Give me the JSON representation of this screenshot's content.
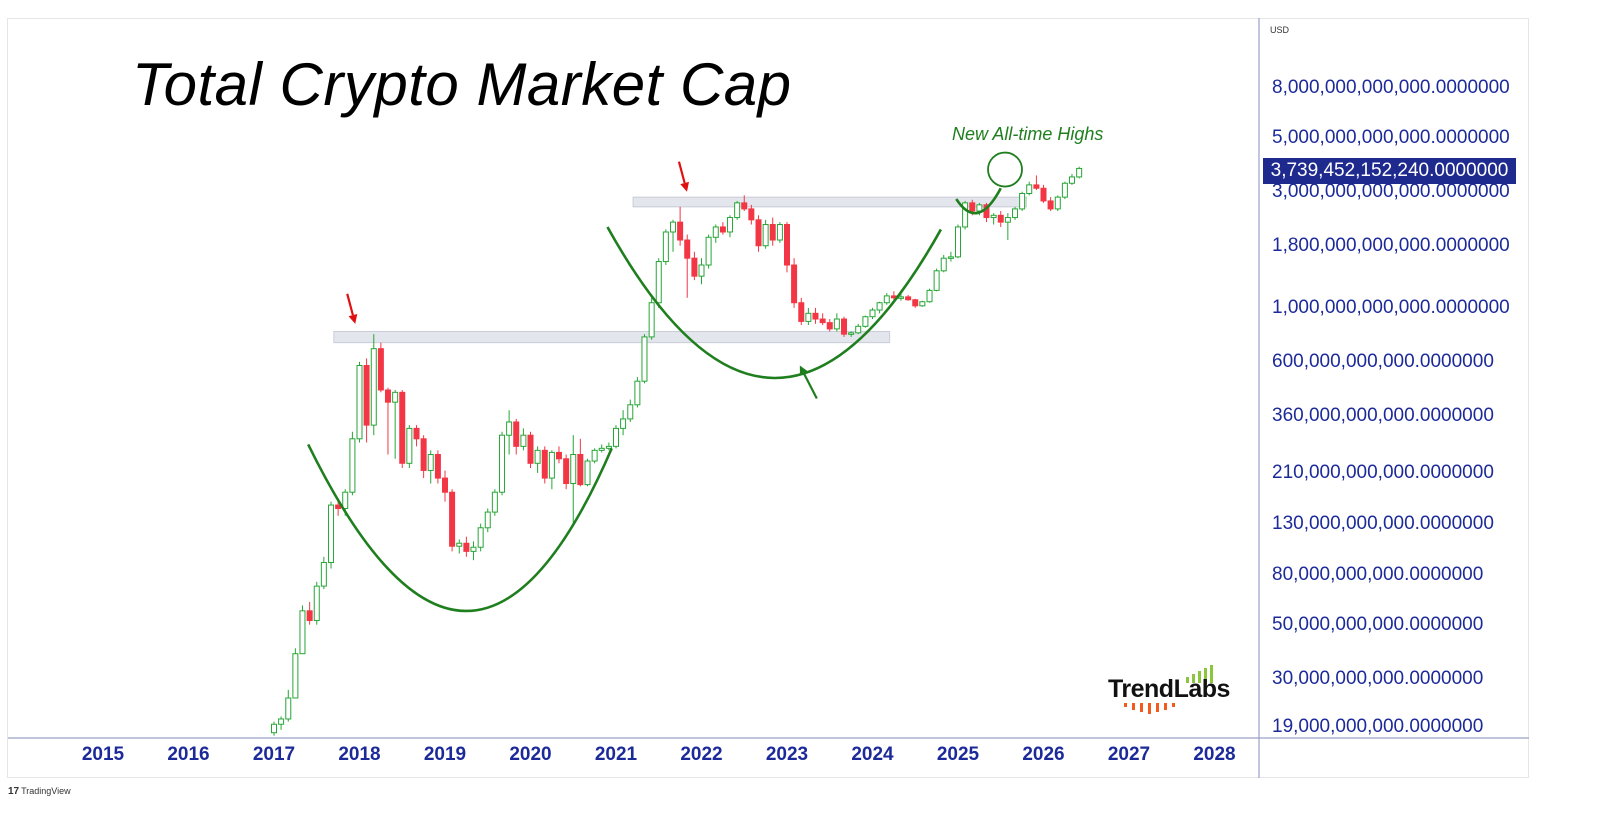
{
  "chart_data": {
    "type": "candlestick",
    "title": "Total Crypto Market Cap",
    "currency": "USD",
    "y_scale": "log",
    "ylim": [
      17000000000,
      12500000000000
    ],
    "xlim": [
      2014.5,
      2028.6
    ],
    "x_ticks": [
      "2015",
      "2016",
      "2017",
      "2018",
      "2019",
      "2020",
      "2021",
      "2022",
      "2023",
      "2024",
      "2025",
      "2026",
      "2027",
      "2028"
    ],
    "y_ticks": [
      {
        "value": 8000000000000,
        "label": "8,000,000,000,000.0000000"
      },
      {
        "value": 5000000000000,
        "label": "5,000,000,000,000.0000000"
      },
      {
        "value": 3000000000000,
        "label": "3,000,000,000,000.0000000"
      },
      {
        "value": 1800000000000,
        "label": "1,800,000,000,000.0000000"
      },
      {
        "value": 1000000000000,
        "label": "1,000,000,000,000.0000000"
      },
      {
        "value": 600000000000,
        "label": "600,000,000,000.0000000"
      },
      {
        "value": 360000000000,
        "label": "360,000,000,000.0000000"
      },
      {
        "value": 210000000000,
        "label": "210,000,000,000.0000000"
      },
      {
        "value": 130000000000,
        "label": "130,000,000,000.0000000"
      },
      {
        "value": 80000000000,
        "label": "80,000,000,000.0000000"
      },
      {
        "value": 50000000000,
        "label": "50,000,000,000.0000000"
      },
      {
        "value": 30000000000,
        "label": "30,000,000,000.0000000"
      },
      {
        "value": 19000000000,
        "label": "19,000,000,000.0000000"
      }
    ],
    "last_price": {
      "value": 3739452152240,
      "label": "3,739,452,152,240.0000000"
    },
    "grid": false,
    "annotations": {
      "ath_text": "New All-time Highs",
      "resistance_zones": [
        {
          "from": 2017.7,
          "to": 2024.2,
          "low": 720000000000,
          "high": 800000000000
        },
        {
          "from": 2021.2,
          "to": 2025.8,
          "low": 2600000000000,
          "high": 2850000000000
        }
      ],
      "cup_curves": [
        {
          "start": [
            2017.4,
            275000000000
          ],
          "control": [
            2019.3,
            12000000000
          ],
          "end": [
            2020.95,
            265000000000
          ]
        },
        {
          "start": [
            2020.9,
            2150000000000
          ],
          "control": [
            2022.85,
            125000000000
          ],
          "end": [
            2024.8,
            2100000000000
          ]
        },
        {
          "start": [
            2024.98,
            2800000000000
          ],
          "control": [
            2025.23,
            2050000000000
          ],
          "end": [
            2025.5,
            3100000000000
          ]
        }
      ],
      "arrows": [
        {
          "color": "red",
          "at": [
            2017.95,
            860000000000
          ]
        },
        {
          "color": "red",
          "at": [
            2021.83,
            3000000000000
          ]
        },
        {
          "color": "green",
          "at": [
            2023.15,
            580000000000
          ]
        }
      ],
      "ath_circle": {
        "at": [
          2025.55,
          3700000000000
        ]
      }
    },
    "candles": [
      {
        "t": 2017.0,
        "o": 18,
        "h": 20,
        "l": 17.5,
        "c": 19.5
      },
      {
        "t": 2017.083,
        "o": 19.5,
        "h": 21,
        "l": 18.5,
        "c": 20.5
      },
      {
        "t": 2017.167,
        "o": 20.5,
        "h": 27,
        "l": 20,
        "c": 25
      },
      {
        "t": 2017.25,
        "o": 25,
        "h": 40,
        "l": 25,
        "c": 38
      },
      {
        "t": 2017.333,
        "o": 38,
        "h": 60,
        "l": 38,
        "c": 57
      },
      {
        "t": 2017.417,
        "o": 57,
        "h": 62,
        "l": 50,
        "c": 52
      },
      {
        "t": 2017.5,
        "o": 52,
        "h": 75,
        "l": 50,
        "c": 72
      },
      {
        "t": 2017.583,
        "o": 72,
        "h": 95,
        "l": 70,
        "c": 90
      },
      {
        "t": 2017.667,
        "o": 90,
        "h": 160,
        "l": 85,
        "c": 155
      },
      {
        "t": 2017.75,
        "o": 155,
        "h": 165,
        "l": 140,
        "c": 150
      },
      {
        "t": 2017.833,
        "o": 150,
        "h": 180,
        "l": 140,
        "c": 175
      },
      {
        "t": 2017.917,
        "o": 175,
        "h": 310,
        "l": 170,
        "c": 290
      },
      {
        "t": 2018.0,
        "o": 290,
        "h": 600,
        "l": 280,
        "c": 580
      },
      {
        "t": 2018.083,
        "o": 580,
        "h": 620,
        "l": 280,
        "c": 330
      },
      {
        "t": 2018.167,
        "o": 330,
        "h": 780,
        "l": 300,
        "c": 680
      },
      {
        "t": 2018.25,
        "o": 680,
        "h": 720,
        "l": 450,
        "c": 460
      },
      {
        "t": 2018.333,
        "o": 460,
        "h": 470,
        "l": 250,
        "c": 410
      },
      {
        "t": 2018.417,
        "o": 410,
        "h": 460,
        "l": 240,
        "c": 450
      },
      {
        "t": 2018.5,
        "o": 450,
        "h": 460,
        "l": 220,
        "c": 230
      },
      {
        "t": 2018.583,
        "o": 230,
        "h": 330,
        "l": 220,
        "c": 320
      },
      {
        "t": 2018.667,
        "o": 320,
        "h": 330,
        "l": 270,
        "c": 290
      },
      {
        "t": 2018.75,
        "o": 290,
        "h": 300,
        "l": 200,
        "c": 215
      },
      {
        "t": 2018.833,
        "o": 215,
        "h": 260,
        "l": 190,
        "c": 250
      },
      {
        "t": 2018.917,
        "o": 250,
        "h": 260,
        "l": 190,
        "c": 200
      },
      {
        "t": 2019.0,
        "o": 200,
        "h": 215,
        "l": 160,
        "c": 175
      },
      {
        "t": 2019.083,
        "o": 175,
        "h": 180,
        "l": 100,
        "c": 105
      },
      {
        "t": 2019.167,
        "o": 105,
        "h": 112,
        "l": 98,
        "c": 108
      },
      {
        "t": 2019.25,
        "o": 108,
        "h": 115,
        "l": 95,
        "c": 100
      },
      {
        "t": 2019.333,
        "o": 100,
        "h": 110,
        "l": 92,
        "c": 104
      },
      {
        "t": 2019.417,
        "o": 104,
        "h": 130,
        "l": 100,
        "c": 125
      },
      {
        "t": 2019.5,
        "o": 125,
        "h": 150,
        "l": 120,
        "c": 145
      },
      {
        "t": 2019.583,
        "o": 145,
        "h": 180,
        "l": 140,
        "c": 175
      },
      {
        "t": 2019.667,
        "o": 175,
        "h": 310,
        "l": 170,
        "c": 300
      },
      {
        "t": 2019.75,
        "o": 300,
        "h": 380,
        "l": 250,
        "c": 340
      },
      {
        "t": 2019.833,
        "o": 340,
        "h": 350,
        "l": 250,
        "c": 270
      },
      {
        "t": 2019.917,
        "o": 270,
        "h": 320,
        "l": 260,
        "c": 300
      },
      {
        "t": 2020.0,
        "o": 300,
        "h": 310,
        "l": 220,
        "c": 230
      },
      {
        "t": 2020.083,
        "o": 230,
        "h": 270,
        "l": 210,
        "c": 260
      },
      {
        "t": 2020.167,
        "o": 260,
        "h": 270,
        "l": 190,
        "c": 200
      },
      {
        "t": 2020.25,
        "o": 200,
        "h": 260,
        "l": 180,
        "c": 255
      },
      {
        "t": 2020.333,
        "o": 255,
        "h": 270,
        "l": 230,
        "c": 240
      },
      {
        "t": 2020.417,
        "o": 240,
        "h": 250,
        "l": 180,
        "c": 190
      },
      {
        "t": 2020.5,
        "o": 190,
        "h": 300,
        "l": 130,
        "c": 250
      },
      {
        "t": 2020.583,
        "o": 250,
        "h": 290,
        "l": 185,
        "c": 188
      },
      {
        "t": 2020.667,
        "o": 188,
        "h": 240,
        "l": 185,
        "c": 235
      },
      {
        "t": 2020.75,
        "o": 235,
        "h": 265,
        "l": 230,
        "c": 260
      },
      {
        "t": 2020.833,
        "o": 260,
        "h": 275,
        "l": 255,
        "c": 265
      },
      {
        "t": 2020.917,
        "o": 265,
        "h": 280,
        "l": 260,
        "c": 270
      },
      {
        "t": 2021.0,
        "o": 270,
        "h": 330,
        "l": 265,
        "c": 320
      },
      {
        "t": 2021.083,
        "o": 320,
        "h": 380,
        "l": 300,
        "c": 350
      },
      {
        "t": 2021.167,
        "o": 350,
        "h": 420,
        "l": 340,
        "c": 400
      },
      {
        "t": 2021.25,
        "o": 400,
        "h": 520,
        "l": 390,
        "c": 500
      },
      {
        "t": 2021.333,
        "o": 500,
        "h": 780,
        "l": 490,
        "c": 760
      },
      {
        "t": 2021.417,
        "o": 760,
        "h": 1100,
        "l": 740,
        "c": 1050
      },
      {
        "t": 2021.5,
        "o": 1050,
        "h": 1600,
        "l": 1000,
        "c": 1550
      },
      {
        "t": 2021.583,
        "o": 1550,
        "h": 2100,
        "l": 1500,
        "c": 2050
      },
      {
        "t": 2021.667,
        "o": 2050,
        "h": 2300,
        "l": 1700,
        "c": 2250
      },
      {
        "t": 2021.75,
        "o": 2250,
        "h": 2600,
        "l": 1800,
        "c": 1900
      },
      {
        "t": 2021.833,
        "o": 1900,
        "h": 2000,
        "l": 1100,
        "c": 1600
      },
      {
        "t": 2021.917,
        "o": 1600,
        "h": 1700,
        "l": 1300,
        "c": 1350
      },
      {
        "t": 2022.0,
        "o": 1350,
        "h": 1600,
        "l": 1250,
        "c": 1500
      },
      {
        "t": 2022.083,
        "o": 1500,
        "h": 2000,
        "l": 1450,
        "c": 1950
      },
      {
        "t": 2022.167,
        "o": 1950,
        "h": 2200,
        "l": 1850,
        "c": 2150
      },
      {
        "t": 2022.25,
        "o": 2150,
        "h": 2250,
        "l": 2000,
        "c": 2050
      },
      {
        "t": 2022.333,
        "o": 2050,
        "h": 2400,
        "l": 1950,
        "c": 2350
      },
      {
        "t": 2022.417,
        "o": 2350,
        "h": 2750,
        "l": 2300,
        "c": 2700
      },
      {
        "t": 2022.5,
        "o": 2700,
        "h": 2900,
        "l": 2500,
        "c": 2550
      },
      {
        "t": 2022.583,
        "o": 2550,
        "h": 2650,
        "l": 2200,
        "c": 2300
      },
      {
        "t": 2022.667,
        "o": 2300,
        "h": 2400,
        "l": 1700,
        "c": 1800
      },
      {
        "t": 2022.75,
        "o": 1800,
        "h": 2300,
        "l": 1750,
        "c": 2200
      },
      {
        "t": 2022.833,
        "o": 2200,
        "h": 2350,
        "l": 1800,
        "c": 1900
      },
      {
        "t": 2022.917,
        "o": 1900,
        "h": 2250,
        "l": 1850,
        "c": 2200
      },
      {
        "t": 2023.0,
        "o": 2200,
        "h": 2250,
        "l": 1400,
        "c": 1500
      },
      {
        "t": 2023.083,
        "o": 1500,
        "h": 1600,
        "l": 1000,
        "c": 1050
      },
      {
        "t": 2023.167,
        "o": 1050,
        "h": 1100,
        "l": 850,
        "c": 880
      },
      {
        "t": 2023.25,
        "o": 880,
        "h": 1000,
        "l": 850,
        "c": 950
      },
      {
        "t": 2023.333,
        "o": 950,
        "h": 1000,
        "l": 860,
        "c": 900
      },
      {
        "t": 2023.417,
        "o": 900,
        "h": 950,
        "l": 850,
        "c": 870
      },
      {
        "t": 2023.5,
        "o": 870,
        "h": 900,
        "l": 800,
        "c": 820
      },
      {
        "t": 2023.583,
        "o": 820,
        "h": 950,
        "l": 800,
        "c": 900
      },
      {
        "t": 2023.667,
        "o": 900,
        "h": 920,
        "l": 760,
        "c": 780
      },
      {
        "t": 2023.75,
        "o": 780,
        "h": 800,
        "l": 760,
        "c": 790
      },
      {
        "t": 2023.833,
        "o": 790,
        "h": 860,
        "l": 780,
        "c": 840
      },
      {
        "t": 2023.917,
        "o": 840,
        "h": 930,
        "l": 830,
        "c": 920
      },
      {
        "t": 2024.0,
        "o": 920,
        "h": 1000,
        "l": 900,
        "c": 980
      },
      {
        "t": 2024.083,
        "o": 980,
        "h": 1060,
        "l": 950,
        "c": 1050
      },
      {
        "t": 2024.167,
        "o": 1050,
        "h": 1150,
        "l": 1030,
        "c": 1120
      },
      {
        "t": 2024.25,
        "o": 1120,
        "h": 1170,
        "l": 1080,
        "c": 1100
      },
      {
        "t": 2024.333,
        "o": 1100,
        "h": 1140,
        "l": 1070,
        "c": 1110
      },
      {
        "t": 2024.417,
        "o": 1110,
        "h": 1130,
        "l": 1070,
        "c": 1080
      },
      {
        "t": 2024.5,
        "o": 1080,
        "h": 1090,
        "l": 1000,
        "c": 1020
      },
      {
        "t": 2024.583,
        "o": 1020,
        "h": 1070,
        "l": 1010,
        "c": 1060
      },
      {
        "t": 2024.667,
        "o": 1060,
        "h": 1200,
        "l": 1050,
        "c": 1180
      },
      {
        "t": 2024.75,
        "o": 1180,
        "h": 1450,
        "l": 1170,
        "c": 1420
      },
      {
        "t": 2024.833,
        "o": 1420,
        "h": 1650,
        "l": 1400,
        "c": 1600
      },
      {
        "t": 2024.917,
        "o": 1600,
        "h": 1700,
        "l": 1550,
        "c": 1620
      },
      {
        "t": 2025.0,
        "o": 1620,
        "h": 2200,
        "l": 1600,
        "c": 2150
      },
      {
        "t": 2025.083,
        "o": 2150,
        "h": 2750,
        "l": 2100,
        "c": 2700
      },
      {
        "t": 2025.167,
        "o": 2700,
        "h": 2780,
        "l": 2400,
        "c": 2500
      },
      {
        "t": 2025.25,
        "o": 2500,
        "h": 2700,
        "l": 2400,
        "c": 2650
      },
      {
        "t": 2025.333,
        "o": 2650,
        "h": 2700,
        "l": 2250,
        "c": 2350
      },
      {
        "t": 2025.417,
        "o": 2350,
        "h": 2450,
        "l": 2200,
        "c": 2400
      },
      {
        "t": 2025.5,
        "o": 2400,
        "h": 2500,
        "l": 2150,
        "c": 2250
      },
      {
        "t": 2025.583,
        "o": 2250,
        "h": 2450,
        "l": 1900,
        "c": 2350
      },
      {
        "t": 2025.667,
        "o": 2350,
        "h": 2600,
        "l": 2300,
        "c": 2550
      },
      {
        "t": 2025.75,
        "o": 2550,
        "h": 3000,
        "l": 2500,
        "c": 2950
      },
      {
        "t": 2025.833,
        "o": 2950,
        "h": 3300,
        "l": 2900,
        "c": 3200
      },
      {
        "t": 2025.917,
        "o": 3200,
        "h": 3500,
        "l": 3050,
        "c": 3100
      },
      {
        "t": 2026.0,
        "o": 3100,
        "h": 3200,
        "l": 2700,
        "c": 2750
      },
      {
        "t": 2026.083,
        "o": 2750,
        "h": 2850,
        "l": 2500,
        "c": 2550
      },
      {
        "t": 2026.167,
        "o": 2550,
        "h": 2900,
        "l": 2500,
        "c": 2850
      },
      {
        "t": 2026.25,
        "o": 2850,
        "h": 3300,
        "l": 2800,
        "c": 3250
      },
      {
        "t": 2026.333,
        "o": 3250,
        "h": 3550,
        "l": 3200,
        "c": 3450
      },
      {
        "t": 2026.417,
        "o": 3450,
        "h": 3800,
        "l": 3400,
        "c": 3739
      }
    ]
  },
  "brand": {
    "logo_text": "TrendLabs",
    "tradingview_text": "TradingView",
    "colors": {
      "up": "#26a636",
      "down": "#f23645",
      "axis_text": "#1c2a99",
      "annotation_green": "#1f7f1f",
      "arrow_red": "#e01010",
      "badge_bg": "#1f2a8f"
    }
  }
}
